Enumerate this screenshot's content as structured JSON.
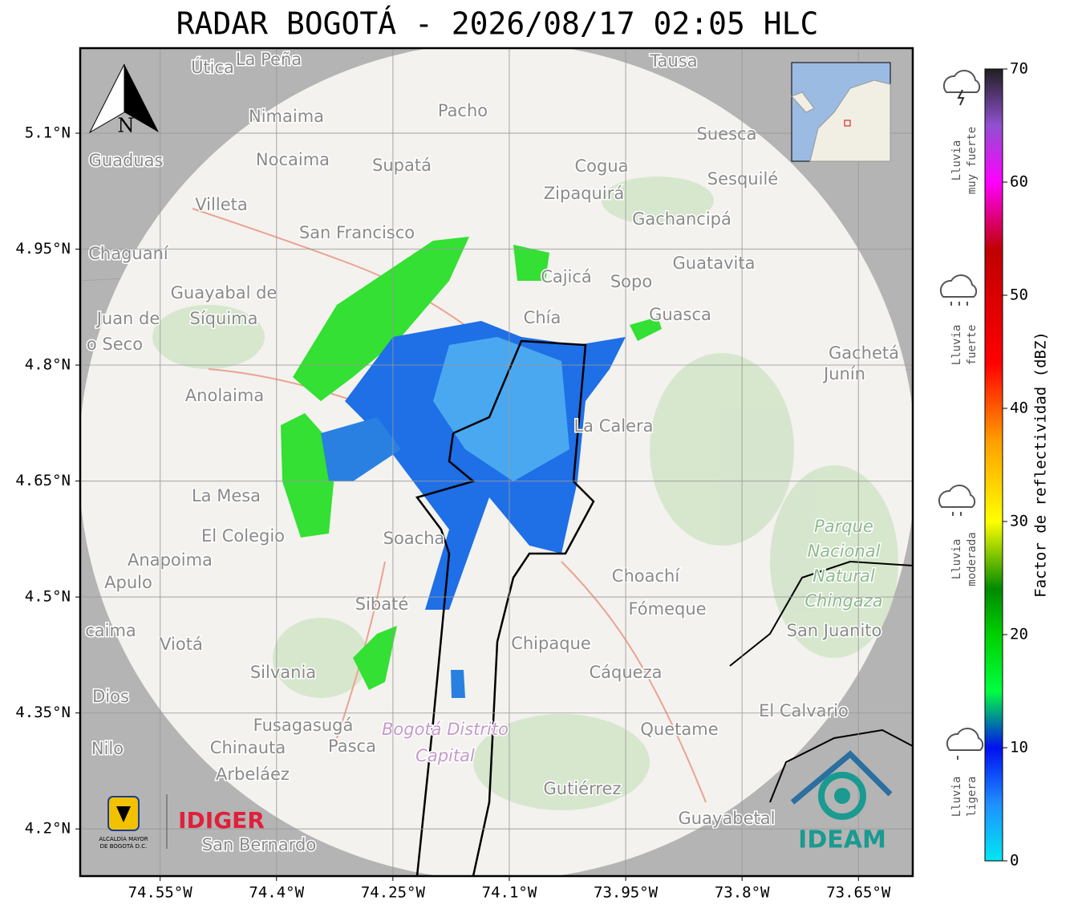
{
  "title": "RADAR BOGOTÁ - 2026/08/17 02:05 HLC",
  "map": {
    "xlim": [
      -74.653,
      -73.58
    ],
    "ylim": [
      4.139,
      5.21
    ],
    "grid": true,
    "xticks": [
      {
        "value": -74.55,
        "label": "74.55°W"
      },
      {
        "value": -74.4,
        "label": "74.4°W"
      },
      {
        "value": -74.25,
        "label": "74.25°W"
      },
      {
        "value": -74.1,
        "label": "74.1°W"
      },
      {
        "value": -73.95,
        "label": "73.95°W"
      },
      {
        "value": -73.8,
        "label": "73.8°W"
      },
      {
        "value": -73.65,
        "label": "73.65°W"
      }
    ],
    "yticks": [
      {
        "value": 5.1,
        "label": "5.1°N"
      },
      {
        "value": 4.95,
        "label": "4.95°N"
      },
      {
        "value": 4.8,
        "label": "4.8°N"
      },
      {
        "value": 4.65,
        "label": "4.65°N"
      },
      {
        "value": 4.5,
        "label": "4.5°N"
      },
      {
        "value": 4.35,
        "label": "4.35°N"
      },
      {
        "value": 4.2,
        "label": "4.2°N"
      }
    ],
    "places": [
      "Útica",
      "La Peña",
      "Tausa",
      "Nimaima",
      "Pacho",
      "Guaduas",
      "Nocaima",
      "Supatá",
      "Cogua",
      "Suesca",
      "Sesquilé",
      "Villeta",
      "Zipaquirá",
      "Gachancipá",
      "San Francisco",
      "Chaguaní",
      "Guatavita",
      "Cajicá",
      "Sopo",
      "Guayabal de",
      "Síquima",
      "Juan de",
      "o Seco",
      "Chía",
      "Guasca",
      "Gachetá",
      "Junín",
      "Anolaima",
      "La Calera",
      "La Mesa",
      "El Colegio",
      "Soacha",
      "Anapoima",
      "Apulo",
      "Choachí",
      "Fómeque",
      "Sibaté",
      "San Juanito",
      "caima",
      "Viotá",
      "Chipaque",
      "Silvania",
      "Cáqueza",
      "Dios",
      "El Calvario",
      "Fusagasugá",
      "Quetame",
      "Nilo",
      "Chinauta",
      "Pasca",
      "Arbeláez",
      "Gutiérrez",
      "Guayabetal",
      "San Bernardo"
    ],
    "park": [
      "Parque",
      "Nacional",
      "Natural",
      "Chingaza"
    ],
    "district": [
      "Bogotá Distrito",
      "Capital"
    ]
  },
  "compass": "N",
  "colorbar": {
    "label": "Factor de reflectividad (dBZ)",
    "lim": [
      0,
      70
    ],
    "ticks": [
      0,
      10,
      20,
      30,
      40,
      50,
      60,
      70
    ],
    "stops": [
      {
        "value": 0,
        "color": "#00e8f0"
      },
      {
        "value": 5,
        "color": "#1e90ff"
      },
      {
        "value": 10,
        "color": "#0010f0"
      },
      {
        "value": 15,
        "color": "#00ff40"
      },
      {
        "value": 20,
        "color": "#00d000"
      },
      {
        "value": 24,
        "color": "#008a00"
      },
      {
        "value": 30,
        "color": "#ffff00"
      },
      {
        "value": 37,
        "color": "#ffa000"
      },
      {
        "value": 44,
        "color": "#ff0000"
      },
      {
        "value": 54,
        "color": "#c00000"
      },
      {
        "value": 60,
        "color": "#ff00ff"
      },
      {
        "value": 65,
        "color": "#9050d0"
      },
      {
        "value": 70,
        "color": "#202020"
      }
    ]
  },
  "legend": [
    [
      "Lluvia",
      "muy fuerte"
    ],
    [
      "Lluvia",
      "fuerte"
    ],
    [
      "Lluvia",
      "moderada"
    ],
    [
      "Lluvia",
      "ligera"
    ]
  ],
  "logos": {
    "alcaldia": [
      "ALCALDÍA MAYOR",
      "DE BOGOTÁ D.C."
    ],
    "idiger": "IDIGER",
    "ideam": "IDEAM"
  }
}
